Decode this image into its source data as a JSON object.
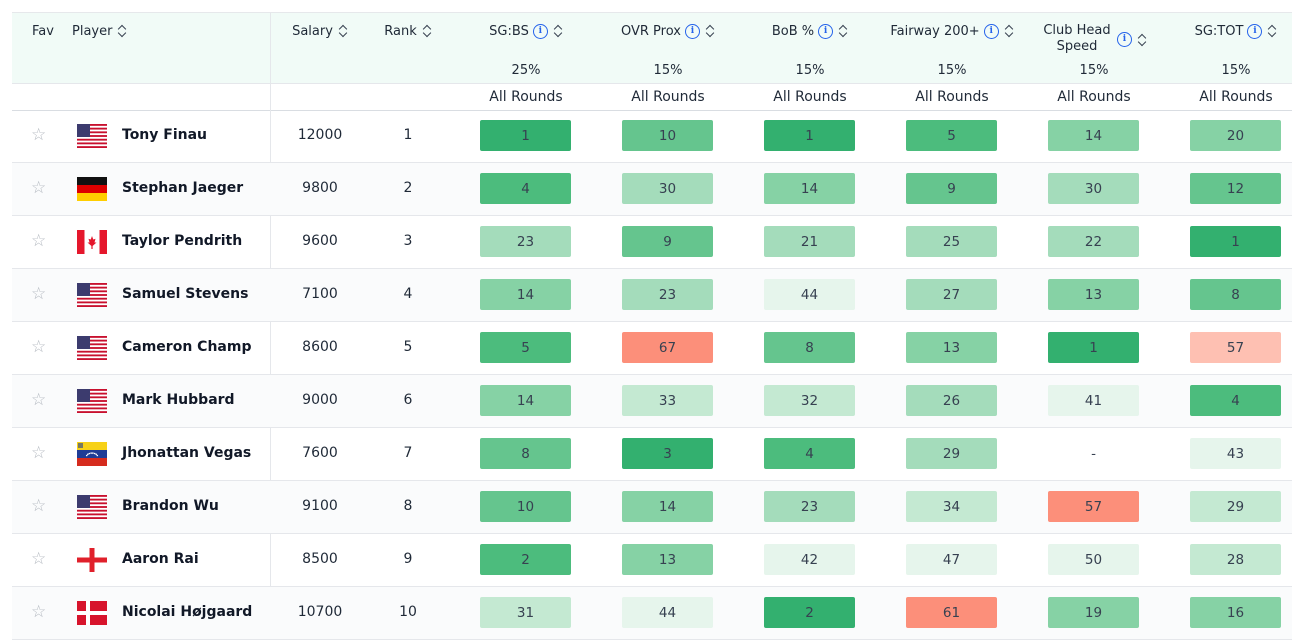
{
  "header": {
    "fav": "Fav",
    "player": "Player",
    "salary": "Salary",
    "rank": "Rank",
    "stat_columns": [
      {
        "label": "SG:BS",
        "info": true,
        "weight": "25%",
        "scope": "All Rounds"
      },
      {
        "label": "OVR Prox",
        "info": true,
        "weight": "15%",
        "scope": "All Rounds"
      },
      {
        "label": "BoB %",
        "info": true,
        "weight": "15%",
        "scope": "All Rounds"
      },
      {
        "label": "Fairway 200+",
        "info": true,
        "weight": "15%",
        "scope": "All Rounds"
      },
      {
        "label": "Club Head Speed",
        "info": true,
        "weight": "15%",
        "scope": "All Rounds"
      },
      {
        "label": "SG:TOT",
        "info": true,
        "weight": "15%",
        "scope": "All Rounds"
      }
    ],
    "info_glyph": "i"
  },
  "icons": {
    "star": "star-outline-icon",
    "sort": "sort-arrows-icon",
    "info": "info-circle-icon"
  },
  "colors": {
    "g1": "#33b06f",
    "g2": "#4cbc7d",
    "g3": "#65c58e",
    "g4": "#86d2a5",
    "g5": "#a4dcbb",
    "g6": "#c4e9d2",
    "g7": "#e6f5ec",
    "r1": "#fc8f7a",
    "r2": "#fec0b2",
    "none": "#ffffff"
  },
  "rows": [
    {
      "name": "Tony Finau",
      "flag": "us",
      "salary": "12000",
      "rank": "1",
      "stats": [
        {
          "v": "1",
          "c": "g1"
        },
        {
          "v": "10",
          "c": "g3"
        },
        {
          "v": "1",
          "c": "g1"
        },
        {
          "v": "5",
          "c": "g2"
        },
        {
          "v": "14",
          "c": "g4"
        },
        {
          "v": "20",
          "c": "g4"
        }
      ]
    },
    {
      "name": "Stephan Jaeger",
      "flag": "de",
      "salary": "9800",
      "rank": "2",
      "stats": [
        {
          "v": "4",
          "c": "g2"
        },
        {
          "v": "30",
          "c": "g5"
        },
        {
          "v": "14",
          "c": "g4"
        },
        {
          "v": "9",
          "c": "g3"
        },
        {
          "v": "30",
          "c": "g5"
        },
        {
          "v": "12",
          "c": "g3"
        }
      ]
    },
    {
      "name": "Taylor Pendrith",
      "flag": "ca",
      "salary": "9600",
      "rank": "3",
      "stats": [
        {
          "v": "23",
          "c": "g5"
        },
        {
          "v": "9",
          "c": "g3"
        },
        {
          "v": "21",
          "c": "g5"
        },
        {
          "v": "25",
          "c": "g5"
        },
        {
          "v": "22",
          "c": "g5"
        },
        {
          "v": "1",
          "c": "g1"
        }
      ]
    },
    {
      "name": "Samuel Stevens",
      "flag": "us",
      "salary": "7100",
      "rank": "4",
      "stats": [
        {
          "v": "14",
          "c": "g4"
        },
        {
          "v": "23",
          "c": "g5"
        },
        {
          "v": "44",
          "c": "g7"
        },
        {
          "v": "27",
          "c": "g5"
        },
        {
          "v": "13",
          "c": "g4"
        },
        {
          "v": "8",
          "c": "g3"
        }
      ]
    },
    {
      "name": "Cameron Champ",
      "flag": "us",
      "salary": "8600",
      "rank": "5",
      "stats": [
        {
          "v": "5",
          "c": "g2"
        },
        {
          "v": "67",
          "c": "r1"
        },
        {
          "v": "8",
          "c": "g3"
        },
        {
          "v": "13",
          "c": "g4"
        },
        {
          "v": "1",
          "c": "g1"
        },
        {
          "v": "57",
          "c": "r2"
        }
      ]
    },
    {
      "name": "Mark Hubbard",
      "flag": "us",
      "salary": "9000",
      "rank": "6",
      "stats": [
        {
          "v": "14",
          "c": "g4"
        },
        {
          "v": "33",
          "c": "g6"
        },
        {
          "v": "32",
          "c": "g6"
        },
        {
          "v": "26",
          "c": "g5"
        },
        {
          "v": "41",
          "c": "g7"
        },
        {
          "v": "4",
          "c": "g2"
        }
      ]
    },
    {
      "name": "Jhonattan Vegas",
      "flag": "ve",
      "salary": "7600",
      "rank": "7",
      "stats": [
        {
          "v": "8",
          "c": "g3"
        },
        {
          "v": "3",
          "c": "g1"
        },
        {
          "v": "4",
          "c": "g2"
        },
        {
          "v": "29",
          "c": "g5"
        },
        {
          "v": "-",
          "c": "none"
        },
        {
          "v": "43",
          "c": "g7"
        }
      ]
    },
    {
      "name": "Brandon Wu",
      "flag": "us",
      "salary": "9100",
      "rank": "8",
      "stats": [
        {
          "v": "10",
          "c": "g3"
        },
        {
          "v": "14",
          "c": "g4"
        },
        {
          "v": "23",
          "c": "g5"
        },
        {
          "v": "34",
          "c": "g6"
        },
        {
          "v": "57",
          "c": "r1"
        },
        {
          "v": "29",
          "c": "g6"
        }
      ]
    },
    {
      "name": "Aaron Rai",
      "flag": "en",
      "salary": "8500",
      "rank": "9",
      "stats": [
        {
          "v": "2",
          "c": "g2"
        },
        {
          "v": "13",
          "c": "g4"
        },
        {
          "v": "42",
          "c": "g7"
        },
        {
          "v": "47",
          "c": "g7"
        },
        {
          "v": "50",
          "c": "g7"
        },
        {
          "v": "28",
          "c": "g6"
        }
      ]
    },
    {
      "name": "Nicolai Højgaard",
      "flag": "dk",
      "salary": "10700",
      "rank": "10",
      "stats": [
        {
          "v": "31",
          "c": "g6"
        },
        {
          "v": "44",
          "c": "g7"
        },
        {
          "v": "2",
          "c": "g1"
        },
        {
          "v": "61",
          "c": "r1"
        },
        {
          "v": "19",
          "c": "g4"
        },
        {
          "v": "16",
          "c": "g4"
        }
      ]
    }
  ]
}
